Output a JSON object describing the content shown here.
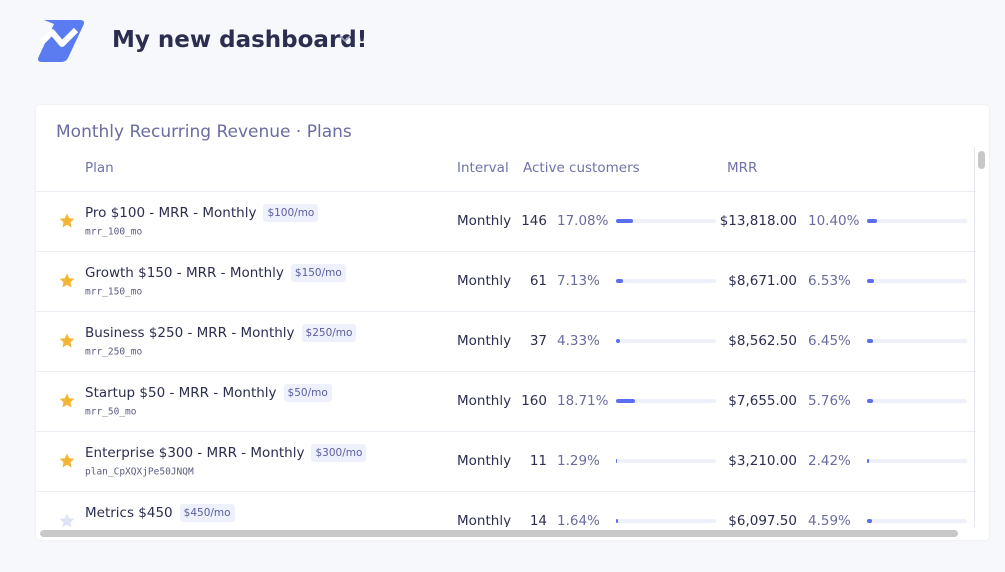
{
  "header": {
    "title": "My new dashboard!"
  },
  "card": {
    "title": "Monthly Recurring Revenue · Plans",
    "columns": [
      "Plan",
      "Interval",
      "Active customers",
      "MRR"
    ],
    "rows": [
      {
        "starred": true,
        "name": "Pro $100 - MRR - Monthly",
        "price": "$100/mo",
        "id": "mrr_100_mo",
        "interval": "Monthly",
        "customers": 146,
        "customers_pct": {
          "value": 17.08,
          "label": "17.08%"
        },
        "mrr": "$13,818.00",
        "mrr_pct": {
          "value": 10.4,
          "label": "10.40%"
        }
      },
      {
        "starred": true,
        "name": "Growth $150 - MRR - Monthly",
        "price": "$150/mo",
        "id": "mrr_150_mo",
        "interval": "Monthly",
        "customers": 61,
        "customers_pct": {
          "value": 7.13,
          "label": "7.13%"
        },
        "mrr": "$8,671.00",
        "mrr_pct": {
          "value": 6.53,
          "label": "6.53%"
        }
      },
      {
        "starred": true,
        "name": "Business $250 - MRR - Monthly",
        "price": "$250/mo",
        "id": "mrr_250_mo",
        "interval": "Monthly",
        "customers": 37,
        "customers_pct": {
          "value": 4.33,
          "label": "4.33%"
        },
        "mrr": "$8,562.50",
        "mrr_pct": {
          "value": 6.45,
          "label": "6.45%"
        }
      },
      {
        "starred": true,
        "name": "Startup $50 - MRR - Monthly",
        "price": "$50/mo",
        "id": "mrr_50_mo",
        "interval": "Monthly",
        "customers": 160,
        "customers_pct": {
          "value": 18.71,
          "label": "18.71%"
        },
        "mrr": "$7,655.00",
        "mrr_pct": {
          "value": 5.76,
          "label": "5.76%"
        }
      },
      {
        "starred": true,
        "name": "Enterprise $300 - MRR - Monthly",
        "price": "$300/mo",
        "id": "plan_CpXQXjPe50JNQM",
        "interval": "Monthly",
        "customers": 11,
        "customers_pct": {
          "value": 1.29,
          "label": "1.29%"
        },
        "mrr": "$3,210.00",
        "mrr_pct": {
          "value": 2.42,
          "label": "2.42%"
        }
      },
      {
        "starred": false,
        "name": "Metrics $450",
        "price": "$450/mo",
        "interval": "Monthly",
        "customers": 14,
        "customers_pct": {
          "value": 1.64,
          "label": "1.64%"
        },
        "mrr": "$6,097.50",
        "mrr_pct": {
          "value": 4.59,
          "label": "4.59%"
        }
      }
    ]
  }
}
